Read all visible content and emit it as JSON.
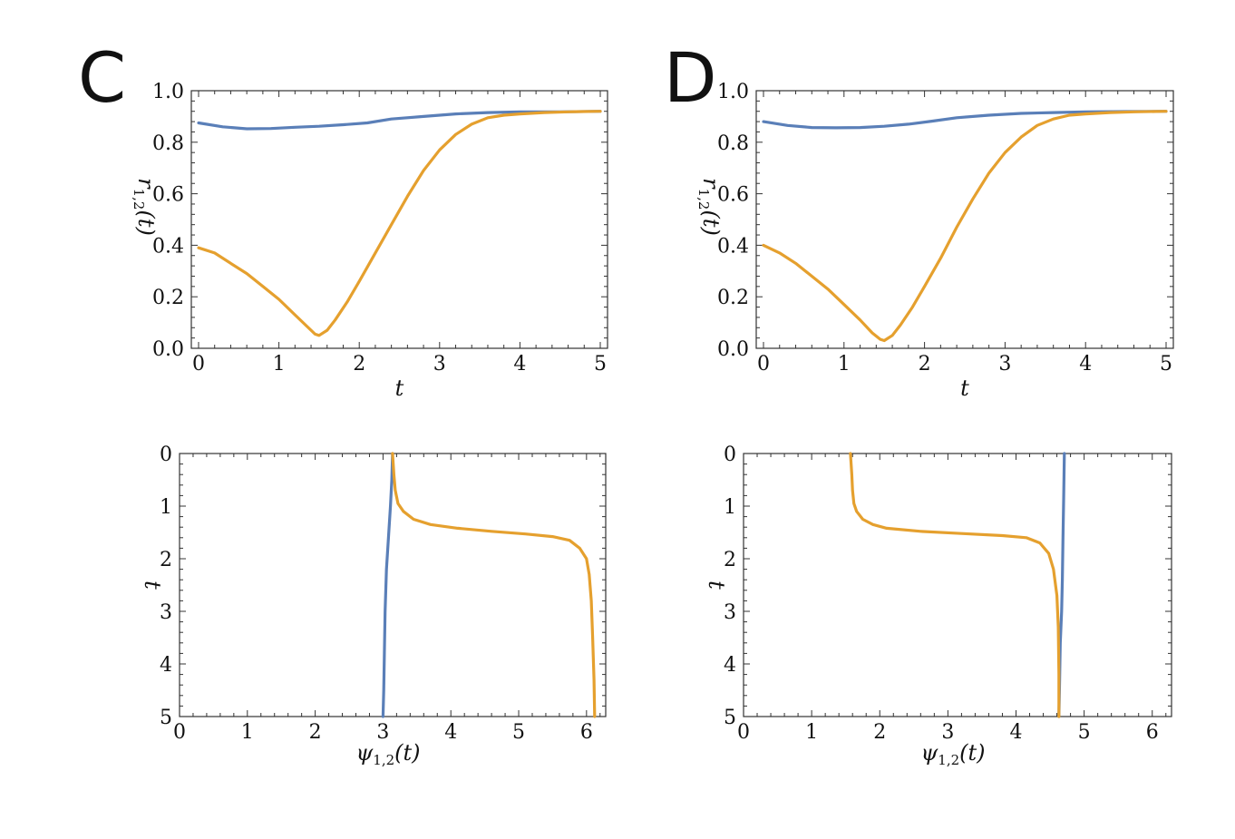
{
  "panels": [
    {
      "letter": "C"
    },
    {
      "letter": "D"
    }
  ],
  "colors": {
    "blue": "#5a7fb8",
    "orange": "#e5a02e"
  },
  "chart_data": [
    {
      "id": "C-top",
      "type": "line",
      "xlabel": "t",
      "ylabel": "r_{1,2}(t)",
      "xlim": [
        0,
        5
      ],
      "ylim": [
        0,
        1
      ],
      "xticks": [
        0,
        1,
        2,
        3,
        4,
        5
      ],
      "yticks": [
        0.0,
        0.2,
        0.4,
        0.6,
        0.8,
        1.0
      ],
      "ytick_labels": [
        "0.0",
        "0.2",
        "0.4",
        "0.6",
        "0.8",
        "1.0"
      ],
      "series": [
        {
          "color": "#5a7fb8",
          "x": [
            0,
            0.3,
            0.6,
            0.9,
            1.2,
            1.5,
            1.8,
            2.1,
            2.4,
            2.8,
            3.2,
            3.6,
            4.0,
            4.5,
            5.0
          ],
          "y": [
            0.875,
            0.86,
            0.852,
            0.853,
            0.858,
            0.862,
            0.868,
            0.875,
            0.89,
            0.9,
            0.91,
            0.915,
            0.918,
            0.918,
            0.92
          ]
        },
        {
          "color": "#e5a02e",
          "x": [
            0,
            0.2,
            0.4,
            0.6,
            0.8,
            1.0,
            1.2,
            1.35,
            1.45,
            1.5,
            1.6,
            1.7,
            1.85,
            2.0,
            2.2,
            2.4,
            2.6,
            2.8,
            3.0,
            3.2,
            3.4,
            3.6,
            3.8,
            4.0,
            4.3,
            4.6,
            5.0
          ],
          "y": [
            0.39,
            0.37,
            0.33,
            0.29,
            0.24,
            0.19,
            0.13,
            0.085,
            0.055,
            0.05,
            0.07,
            0.11,
            0.18,
            0.26,
            0.37,
            0.48,
            0.59,
            0.69,
            0.77,
            0.83,
            0.87,
            0.895,
            0.905,
            0.91,
            0.915,
            0.918,
            0.92
          ]
        }
      ]
    },
    {
      "id": "D-top",
      "type": "line",
      "xlabel": "t",
      "ylabel": "r_{1,2}(t)",
      "xlim": [
        0,
        5
      ],
      "ylim": [
        0,
        1
      ],
      "xticks": [
        0,
        1,
        2,
        3,
        4,
        5
      ],
      "yticks": [
        0.0,
        0.2,
        0.4,
        0.6,
        0.8,
        1.0
      ],
      "ytick_labels": [
        "0.0",
        "0.2",
        "0.4",
        "0.6",
        "0.8",
        "1.0"
      ],
      "series": [
        {
          "color": "#5a7fb8",
          "x": [
            0,
            0.3,
            0.6,
            0.9,
            1.2,
            1.5,
            1.8,
            2.1,
            2.4,
            2.8,
            3.2,
            3.6,
            4.0,
            4.5,
            5.0
          ],
          "y": [
            0.88,
            0.865,
            0.857,
            0.856,
            0.857,
            0.862,
            0.87,
            0.882,
            0.895,
            0.905,
            0.912,
            0.915,
            0.918,
            0.919,
            0.92
          ]
        },
        {
          "color": "#e5a02e",
          "x": [
            0,
            0.2,
            0.4,
            0.6,
            0.8,
            1.0,
            1.2,
            1.35,
            1.45,
            1.5,
            1.6,
            1.7,
            1.85,
            2.0,
            2.2,
            2.4,
            2.6,
            2.8,
            3.0,
            3.2,
            3.4,
            3.6,
            3.8,
            4.0,
            4.3,
            4.6,
            5.0
          ],
          "y": [
            0.4,
            0.37,
            0.33,
            0.28,
            0.23,
            0.17,
            0.11,
            0.06,
            0.035,
            0.03,
            0.05,
            0.09,
            0.16,
            0.24,
            0.35,
            0.47,
            0.58,
            0.68,
            0.76,
            0.82,
            0.865,
            0.89,
            0.905,
            0.91,
            0.915,
            0.918,
            0.92
          ]
        }
      ]
    },
    {
      "id": "C-bottom",
      "type": "line",
      "xlabel": "ψ_{1,2}(t)",
      "ylabel": "t",
      "xlim": [
        0,
        6.283
      ],
      "ylim": [
        0,
        5
      ],
      "y_inverted": true,
      "xticks": [
        0,
        1,
        2,
        3,
        4,
        5,
        6
      ],
      "yticks": [
        0,
        1,
        2,
        3,
        4,
        5
      ],
      "series": [
        {
          "color": "#5a7fb8",
          "psi": [
            3.14,
            3.13,
            3.11,
            3.08,
            3.05,
            3.03,
            3.02,
            3.01,
            3.0
          ],
          "t": [
            0,
            0.5,
            1.0,
            1.6,
            2.2,
            3.0,
            3.8,
            4.5,
            5.0
          ]
        },
        {
          "color": "#e5a02e",
          "psi": [
            3.14,
            3.16,
            3.18,
            3.22,
            3.3,
            3.45,
            3.7,
            4.1,
            4.6,
            5.1,
            5.5,
            5.75,
            5.9,
            6.0,
            6.04,
            6.07,
            6.09,
            6.11,
            6.12
          ],
          "t": [
            0,
            0.4,
            0.7,
            0.95,
            1.1,
            1.25,
            1.35,
            1.42,
            1.48,
            1.53,
            1.58,
            1.65,
            1.8,
            2.0,
            2.3,
            2.8,
            3.5,
            4.3,
            5.0
          ]
        }
      ]
    },
    {
      "id": "D-bottom",
      "type": "line",
      "xlabel": "ψ_{1,2}(t)",
      "ylabel": "t",
      "xlim": [
        0,
        6.283
      ],
      "ylim": [
        0,
        5
      ],
      "y_inverted": true,
      "xticks": [
        0,
        1,
        2,
        3,
        4,
        5,
        6
      ],
      "yticks": [
        0,
        1,
        2,
        3,
        4,
        5
      ],
      "series": [
        {
          "color": "#5a7fb8",
          "psi": [
            4.71,
            4.7,
            4.69,
            4.68,
            4.67,
            4.65,
            4.64,
            4.63
          ],
          "t": [
            0,
            0.8,
            1.6,
            2.4,
            3.0,
            3.6,
            4.3,
            5.0
          ]
        },
        {
          "color": "#e5a02e",
          "psi": [
            1.57,
            1.59,
            1.6,
            1.62,
            1.66,
            1.75,
            1.9,
            2.1,
            2.6,
            3.2,
            3.8,
            4.15,
            4.35,
            4.48,
            4.55,
            4.6,
            4.62,
            4.63,
            4.63
          ],
          "t": [
            0,
            0.4,
            0.7,
            0.95,
            1.1,
            1.25,
            1.35,
            1.42,
            1.48,
            1.52,
            1.56,
            1.6,
            1.7,
            1.9,
            2.2,
            2.7,
            3.3,
            4.2,
            5.0
          ]
        }
      ]
    }
  ]
}
